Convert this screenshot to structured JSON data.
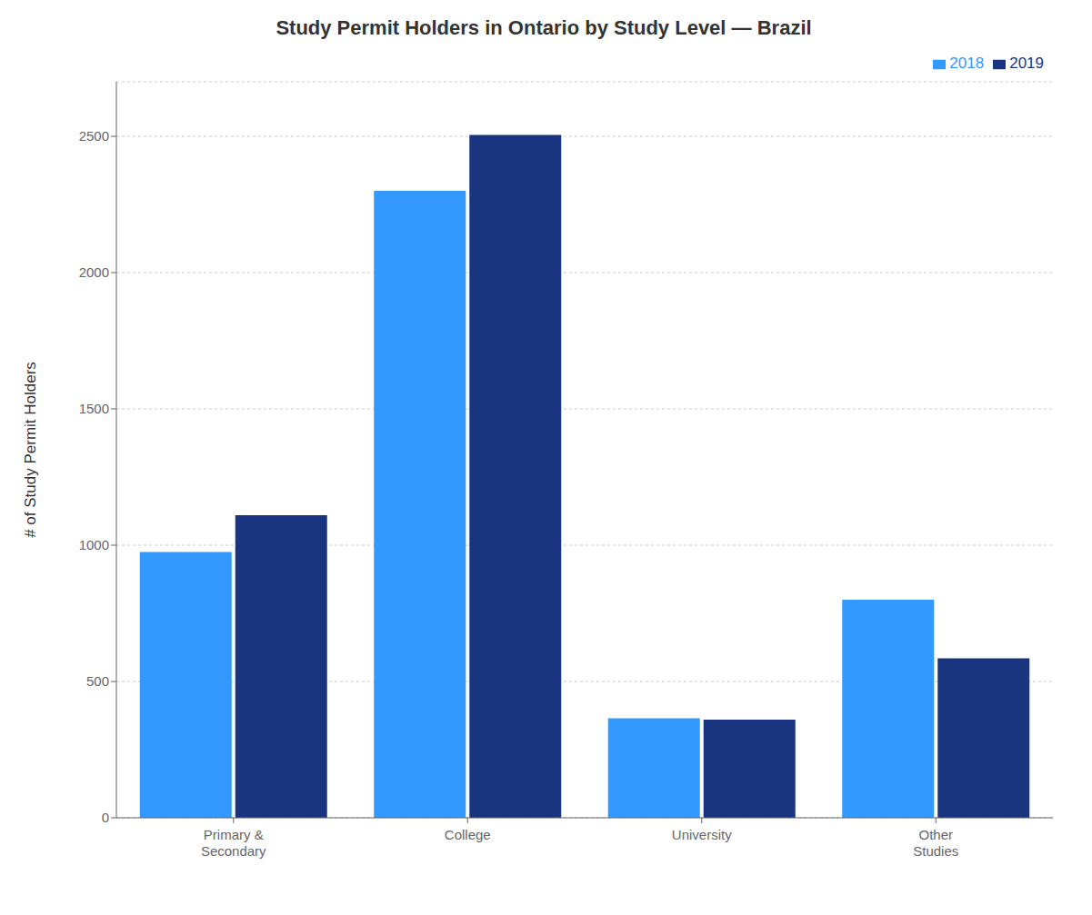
{
  "chart_data": {
    "type": "bar",
    "title": "Study Permit Holders in Ontario by Study Level — Brazil",
    "ylabel": "# of Study Permit Holders",
    "categories": [
      "Primary &\nSecondary",
      "College",
      "University",
      "Other\nStudies"
    ],
    "series": [
      {
        "name": "2018",
        "color": "#3399FF",
        "values": [
          975,
          2300,
          365,
          800
        ]
      },
      {
        "name": "2019",
        "color": "#1A3580",
        "values": [
          1110,
          2505,
          360,
          585
        ]
      }
    ],
    "ylim": [
      0,
      2700
    ],
    "yticks": [
      0,
      500,
      1000,
      1500,
      2000,
      2500
    ],
    "grid": true,
    "legend": "upper right"
  }
}
